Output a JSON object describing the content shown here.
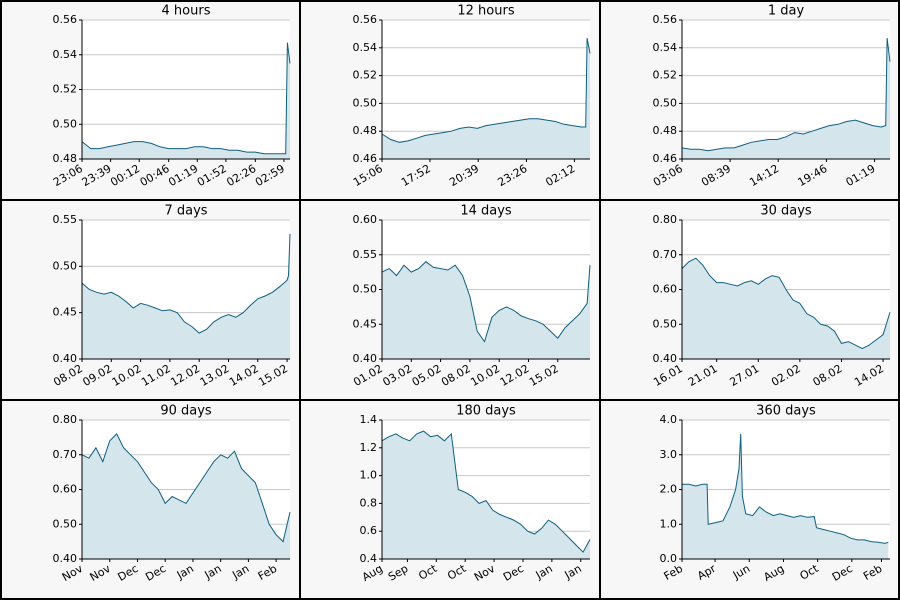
{
  "chart_data": [
    {
      "type": "area",
      "title": "4 hours",
      "color": "#0f5f80",
      "fill": "#d4e5ec",
      "grid": true,
      "x": [
        0,
        10,
        20,
        30,
        40,
        50,
        60,
        70,
        80,
        90,
        100,
        110,
        120,
        130,
        140,
        150,
        160,
        170,
        180,
        190,
        200,
        210,
        220,
        230,
        235,
        237,
        240
      ],
      "values": [
        0.49,
        0.486,
        0.486,
        0.487,
        0.488,
        0.489,
        0.49,
        0.49,
        0.489,
        0.487,
        0.486,
        0.486,
        0.486,
        0.487,
        0.487,
        0.486,
        0.486,
        0.485,
        0.485,
        0.484,
        0.484,
        0.483,
        0.483,
        0.483,
        0.483,
        0.547,
        0.535
      ],
      "xlim": [
        0,
        240
      ],
      "xticks": [
        {
          "value": 0,
          "label": "23:06"
        },
        {
          "value": 33,
          "label": "23:39"
        },
        {
          "value": 66,
          "label": "00:12"
        },
        {
          "value": 100,
          "label": "00:46"
        },
        {
          "value": 133,
          "label": "01:19"
        },
        {
          "value": 166,
          "label": "01:52"
        },
        {
          "value": 200,
          "label": "02:26"
        },
        {
          "value": 233,
          "label": "02:59"
        }
      ],
      "ylim": [
        0.48,
        0.56
      ],
      "yticks": [
        0.48,
        {
          "value": 0.5,
          "label": "0.50"
        },
        0.52,
        0.54,
        0.56
      ]
    },
    {
      "type": "area",
      "title": "12 hours",
      "color": "#0f5f80",
      "fill": "#d4e5ec",
      "grid": true,
      "x": [
        0,
        30,
        60,
        90,
        120,
        150,
        180,
        210,
        240,
        270,
        300,
        330,
        360,
        390,
        420,
        450,
        480,
        510,
        540,
        570,
        600,
        630,
        660,
        690,
        705,
        710,
        720
      ],
      "values": [
        0.478,
        0.474,
        0.472,
        0.473,
        0.475,
        0.477,
        0.478,
        0.479,
        0.48,
        0.482,
        0.483,
        0.482,
        0.484,
        0.485,
        0.486,
        0.487,
        0.488,
        0.489,
        0.489,
        0.488,
        0.487,
        0.485,
        0.484,
        0.483,
        0.483,
        0.547,
        0.536
      ],
      "xlim": [
        0,
        720
      ],
      "xticks": [
        {
          "value": 0,
          "label": "15:06"
        },
        {
          "value": 166,
          "label": "17:52"
        },
        {
          "value": 333,
          "label": "20:39"
        },
        {
          "value": 500,
          "label": "23:26"
        },
        {
          "value": 666,
          "label": "02:12"
        }
      ],
      "ylim": [
        0.46,
        0.56
      ],
      "yticks": [
        0.46,
        0.48,
        {
          "value": 0.5,
          "label": "0.50"
        },
        0.52,
        0.54,
        0.56
      ]
    },
    {
      "type": "area",
      "title": "1 day",
      "color": "#0f5f80",
      "fill": "#d4e5ec",
      "grid": true,
      "x": [
        0,
        60,
        120,
        180,
        240,
        300,
        360,
        420,
        480,
        540,
        600,
        660,
        720,
        780,
        840,
        900,
        960,
        1020,
        1080,
        1140,
        1200,
        1260,
        1320,
        1380,
        1410,
        1420,
        1440
      ],
      "values": [
        0.468,
        0.467,
        0.467,
        0.466,
        0.467,
        0.468,
        0.468,
        0.47,
        0.472,
        0.473,
        0.474,
        0.474,
        0.476,
        0.479,
        0.478,
        0.48,
        0.482,
        0.484,
        0.485,
        0.487,
        0.488,
        0.486,
        0.484,
        0.483,
        0.484,
        0.547,
        0.53
      ],
      "xlim": [
        0,
        1440
      ],
      "xticks": [
        {
          "value": 0,
          "label": "03:06"
        },
        {
          "value": 333,
          "label": "08:39"
        },
        {
          "value": 666,
          "label": "14:12"
        },
        {
          "value": 1000,
          "label": "19:46"
        },
        {
          "value": 1333,
          "label": "01:19"
        }
      ],
      "ylim": [
        0.46,
        0.56
      ],
      "yticks": [
        0.46,
        0.48,
        {
          "value": 0.5,
          "label": "0.50"
        },
        0.52,
        0.54,
        0.56
      ]
    },
    {
      "type": "area",
      "title": "7 days",
      "color": "#0f5f80",
      "fill": "#d4e5ec",
      "grid": true,
      "x": [
        0,
        0.25,
        0.5,
        0.75,
        1,
        1.25,
        1.5,
        1.75,
        2,
        2.25,
        2.5,
        2.75,
        3,
        3.25,
        3.5,
        3.75,
        4,
        4.25,
        4.5,
        4.75,
        5,
        5.25,
        5.5,
        5.75,
        6,
        6.25,
        6.5,
        6.75,
        7,
        7.05,
        7.1
      ],
      "values": [
        0.482,
        0.475,
        0.472,
        0.47,
        0.472,
        0.468,
        0.462,
        0.455,
        0.46,
        0.458,
        0.455,
        0.452,
        0.453,
        0.45,
        0.44,
        0.435,
        0.428,
        0.432,
        0.44,
        0.445,
        0.448,
        0.445,
        0.45,
        0.458,
        0.465,
        0.468,
        0.472,
        0.478,
        0.485,
        0.49,
        0.535
      ],
      "xlim": [
        0,
        7.1
      ],
      "xticks": [
        {
          "value": 0,
          "label": "08.02"
        },
        {
          "value": 1,
          "label": "09.02"
        },
        {
          "value": 2,
          "label": "10.02"
        },
        {
          "value": 3,
          "label": "11.02"
        },
        {
          "value": 4,
          "label": "12.02"
        },
        {
          "value": 5,
          "label": "13.02"
        },
        {
          "value": 6,
          "label": "14.02"
        },
        {
          "value": 7,
          "label": "15.02"
        }
      ],
      "ylim": [
        0.4,
        0.55
      ],
      "yticks": [
        {
          "value": 0.4,
          "label": "0.40"
        },
        0.45,
        {
          "value": 0.5,
          "label": "0.50"
        },
        0.55
      ]
    },
    {
      "type": "area",
      "title": "14 days",
      "color": "#0f5f80",
      "fill": "#d4e5ec",
      "grid": true,
      "x": [
        0,
        0.5,
        1,
        1.5,
        2,
        2.5,
        3,
        3.5,
        4,
        4.5,
        5,
        5.5,
        6,
        6.5,
        7,
        7.5,
        8,
        8.5,
        9,
        9.5,
        10,
        10.5,
        11,
        11.5,
        12,
        12.5,
        13,
        13.5,
        14,
        14.2
      ],
      "values": [
        0.525,
        0.53,
        0.52,
        0.535,
        0.525,
        0.53,
        0.54,
        0.532,
        0.53,
        0.528,
        0.535,
        0.52,
        0.49,
        0.44,
        0.425,
        0.46,
        0.47,
        0.475,
        0.47,
        0.462,
        0.458,
        0.455,
        0.45,
        0.44,
        0.43,
        0.445,
        0.455,
        0.465,
        0.48,
        0.535
      ],
      "xlim": [
        0,
        14.2
      ],
      "xticks": [
        {
          "value": 0,
          "label": "01.02"
        },
        {
          "value": 2,
          "label": "03.02"
        },
        {
          "value": 4,
          "label": "05.02"
        },
        {
          "value": 6,
          "label": "08.02"
        },
        {
          "value": 8,
          "label": "10.02"
        },
        {
          "value": 10,
          "label": "12.02"
        },
        {
          "value": 12,
          "label": "15.02"
        }
      ],
      "ylim": [
        0.4,
        0.6
      ],
      "yticks": [
        {
          "value": 0.4,
          "label": "0.40"
        },
        0.45,
        {
          "value": 0.5,
          "label": "0.50"
        },
        0.55,
        {
          "value": 0.6,
          "label": "0.60"
        }
      ]
    },
    {
      "type": "area",
      "title": "30 days",
      "color": "#0f5f80",
      "fill": "#d4e5ec",
      "grid": true,
      "x": [
        0,
        1,
        2,
        3,
        4,
        5,
        6,
        7,
        8,
        9,
        10,
        11,
        12,
        13,
        14,
        15,
        16,
        17,
        18,
        19,
        20,
        21,
        22,
        23,
        24,
        25,
        26,
        27,
        28,
        29,
        30
      ],
      "values": [
        0.66,
        0.68,
        0.69,
        0.67,
        0.64,
        0.62,
        0.62,
        0.615,
        0.61,
        0.62,
        0.625,
        0.615,
        0.63,
        0.64,
        0.635,
        0.6,
        0.57,
        0.56,
        0.53,
        0.52,
        0.5,
        0.495,
        0.48,
        0.445,
        0.45,
        0.44,
        0.43,
        0.44,
        0.455,
        0.47,
        0.535
      ],
      "xlim": [
        0,
        30
      ],
      "xticks": [
        {
          "value": 0,
          "label": "16.01"
        },
        {
          "value": 5,
          "label": "21.01"
        },
        {
          "value": 11,
          "label": "27.01"
        },
        {
          "value": 17,
          "label": "02.02"
        },
        {
          "value": 23,
          "label": "08.02"
        },
        {
          "value": 29,
          "label": "14.02"
        }
      ],
      "ylim": [
        0.4,
        0.8
      ],
      "yticks": [
        {
          "value": 0.4,
          "label": "0.40"
        },
        {
          "value": 0.5,
          "label": "0.50"
        },
        {
          "value": 0.6,
          "label": "0.60"
        },
        {
          "value": 0.7,
          "label": "0.70"
        },
        {
          "value": 0.8,
          "label": "0.80"
        }
      ]
    },
    {
      "type": "area",
      "title": "90 days",
      "color": "#0f5f80",
      "fill": "#d4e5ec",
      "grid": true,
      "x": [
        0,
        3,
        6,
        9,
        12,
        15,
        18,
        21,
        24,
        27,
        30,
        33,
        36,
        39,
        42,
        45,
        48,
        51,
        54,
        57,
        60,
        63,
        66,
        69,
        72,
        75,
        78,
        81,
        84,
        87,
        90
      ],
      "values": [
        0.7,
        0.69,
        0.72,
        0.68,
        0.74,
        0.76,
        0.72,
        0.7,
        0.68,
        0.65,
        0.62,
        0.6,
        0.56,
        0.58,
        0.57,
        0.56,
        0.59,
        0.62,
        0.65,
        0.68,
        0.7,
        0.69,
        0.71,
        0.66,
        0.64,
        0.62,
        0.56,
        0.5,
        0.47,
        0.45,
        0.535
      ],
      "xlim": [
        0,
        90
      ],
      "xticks": [
        {
          "value": 0,
          "label": "Nov"
        },
        {
          "value": 12,
          "label": "Nov"
        },
        {
          "value": 24,
          "label": "Dec"
        },
        {
          "value": 36,
          "label": "Dec"
        },
        {
          "value": 48,
          "label": "Jan"
        },
        {
          "value": 60,
          "label": "Jan"
        },
        {
          "value": 72,
          "label": "Jan"
        },
        {
          "value": 84,
          "label": "Feb"
        }
      ],
      "ylim": [
        0.4,
        0.8
      ],
      "yticks": [
        {
          "value": 0.4,
          "label": "0.40"
        },
        {
          "value": 0.5,
          "label": "0.50"
        },
        {
          "value": 0.6,
          "label": "0.60"
        },
        {
          "value": 0.7,
          "label": "0.70"
        },
        {
          "value": 0.8,
          "label": "0.80"
        }
      ]
    },
    {
      "type": "area",
      "title": "180 days",
      "color": "#0f5f80",
      "fill": "#d4e5ec",
      "grid": true,
      "x": [
        0,
        6,
        12,
        18,
        24,
        30,
        36,
        42,
        48,
        54,
        60,
        66,
        72,
        78,
        84,
        90,
        96,
        102,
        108,
        114,
        120,
        126,
        132,
        138,
        144,
        150,
        156,
        162,
        168,
        174,
        180
      ],
      "values": [
        1.25,
        1.28,
        1.3,
        1.27,
        1.25,
        1.3,
        1.32,
        1.28,
        1.29,
        1.25,
        1.3,
        0.9,
        0.88,
        0.85,
        0.8,
        0.82,
        0.75,
        0.72,
        0.7,
        0.68,
        0.65,
        0.6,
        0.58,
        0.62,
        0.68,
        0.65,
        0.6,
        0.55,
        0.5,
        0.45,
        0.54
      ],
      "xlim": [
        0,
        180
      ],
      "xticks": [
        {
          "value": 0,
          "label": "Aug"
        },
        {
          "value": 22,
          "label": "Sep"
        },
        {
          "value": 47,
          "label": "Oct"
        },
        {
          "value": 72,
          "label": "Oct"
        },
        {
          "value": 97,
          "label": "Nov"
        },
        {
          "value": 122,
          "label": "Dec"
        },
        {
          "value": 147,
          "label": "Jan"
        },
        {
          "value": 172,
          "label": "Jan"
        }
      ],
      "ylim": [
        0.4,
        1.4
      ],
      "yticks": [
        0.4,
        0.6,
        0.8,
        {
          "value": 1,
          "label": "1.0"
        },
        1.2,
        1.4
      ]
    },
    {
      "type": "area",
      "title": "360 days",
      "color": "#0f5f80",
      "fill": "#d4e5ec",
      "grid": true,
      "x": [
        0,
        12,
        24,
        36,
        44,
        46,
        60,
        72,
        84,
        94,
        100,
        103,
        106,
        112,
        124,
        136,
        148,
        160,
        172,
        184,
        196,
        208,
        220,
        232,
        236,
        248,
        260,
        272,
        284,
        296,
        308,
        320,
        332,
        344,
        356,
        362
      ],
      "values": [
        2.15,
        2.15,
        2.1,
        2.15,
        2.15,
        1.0,
        1.05,
        1.1,
        1.5,
        2.0,
        2.6,
        3.6,
        1.8,
        1.3,
        1.25,
        1.5,
        1.35,
        1.25,
        1.3,
        1.25,
        1.2,
        1.25,
        1.2,
        1.22,
        0.9,
        0.85,
        0.8,
        0.75,
        0.7,
        0.6,
        0.55,
        0.55,
        0.5,
        0.48,
        0.45,
        0.48
      ],
      "xlim": [
        0,
        365
      ],
      "xticks": [
        {
          "value": 0,
          "label": "Feb"
        },
        {
          "value": 58,
          "label": "Apr"
        },
        {
          "value": 118,
          "label": "Jun"
        },
        {
          "value": 178,
          "label": "Aug"
        },
        {
          "value": 238,
          "label": "Oct"
        },
        {
          "value": 298,
          "label": "Dec"
        },
        {
          "value": 350,
          "label": "Feb"
        }
      ],
      "ylim": [
        0,
        4
      ],
      "yticks": [
        {
          "value": 0,
          "label": "0.0"
        },
        {
          "value": 1,
          "label": "1.0"
        },
        {
          "value": 2,
          "label": "2.0"
        },
        {
          "value": 3,
          "label": "3.0"
        },
        {
          "value": 4,
          "label": "4.0"
        }
      ]
    }
  ]
}
